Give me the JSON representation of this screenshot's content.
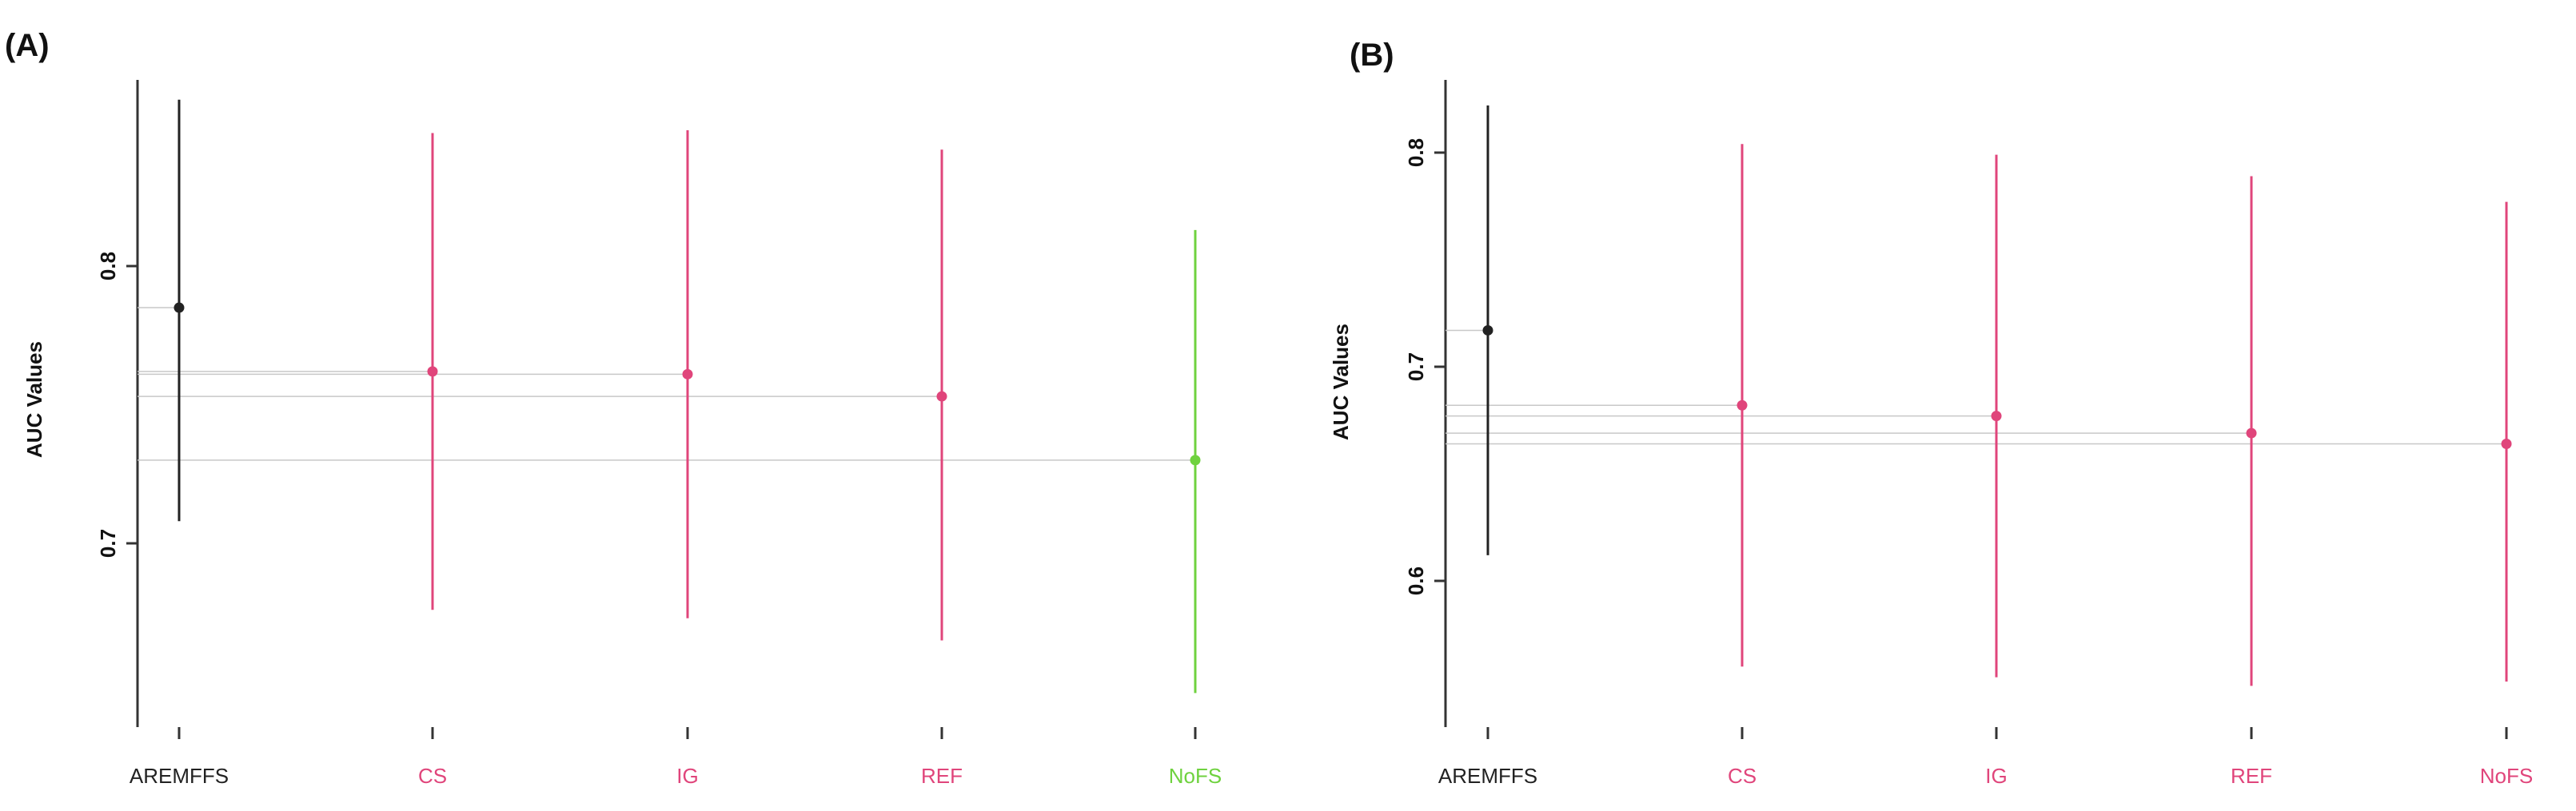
{
  "chart_data": [
    {
      "type": "scatter",
      "panel": "(A)",
      "ylabel": "AUC Values",
      "ylim": [
        0.64,
        0.86
      ],
      "yticks": [
        "0.7",
        "0.8"
      ],
      "ytick_values": [
        0.7,
        0.8
      ],
      "categories": [
        "AREMFFS",
        "CS",
        "IG",
        "REF",
        "NoFS"
      ],
      "category_colors": [
        "#222222",
        "#e0457b",
        "#e0457b",
        "#e0457b",
        "#6fd23f"
      ],
      "values": [
        0.785,
        0.762,
        0.761,
        0.753,
        0.73
      ],
      "lower": [
        0.708,
        0.676,
        0.673,
        0.665,
        0.646
      ],
      "upper": [
        0.86,
        0.848,
        0.849,
        0.842,
        0.813
      ]
    },
    {
      "type": "scatter",
      "panel": "(B)",
      "ylabel": "AUC Values",
      "ylim": [
        0.54,
        0.83
      ],
      "yticks": [
        "0.6",
        "0.7",
        "0.8"
      ],
      "ytick_values": [
        0.6,
        0.7,
        0.8
      ],
      "categories": [
        "AREMFFS",
        "CS",
        "IG",
        "REF",
        "NoFS"
      ],
      "category_colors": [
        "#222222",
        "#e0457b",
        "#e0457b",
        "#e0457b",
        "#e0457b"
      ],
      "values": [
        0.717,
        0.682,
        0.677,
        0.669,
        0.664
      ],
      "lower": [
        0.612,
        0.56,
        0.555,
        0.551,
        0.553
      ],
      "upper": [
        0.822,
        0.804,
        0.799,
        0.789,
        0.777
      ]
    }
  ]
}
